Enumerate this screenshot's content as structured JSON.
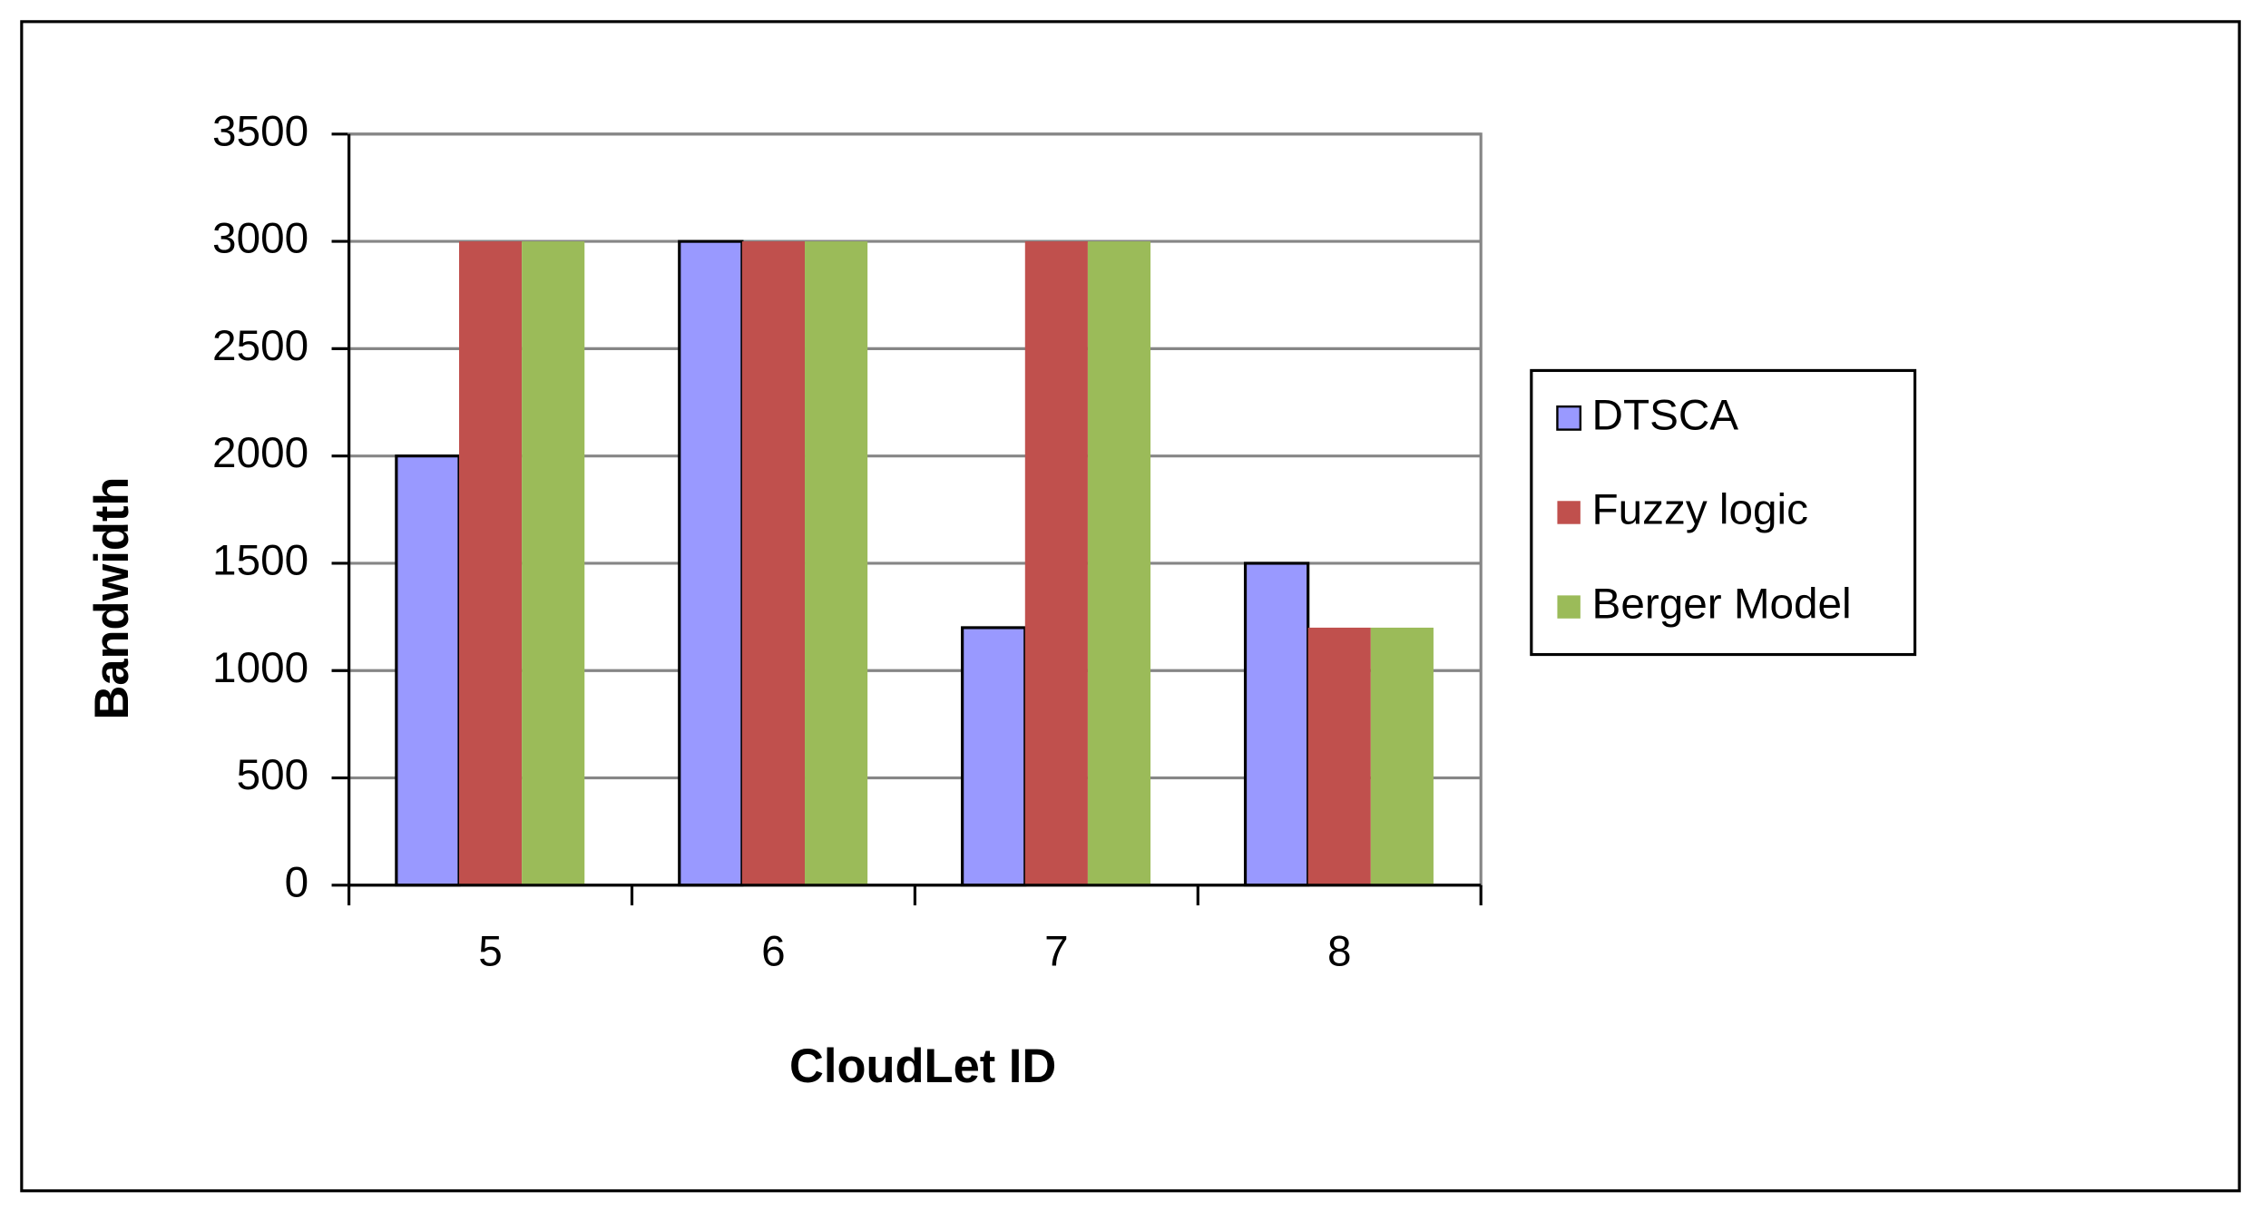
{
  "chart_data": {
    "type": "bar",
    "x_label": "CloudLet ID",
    "y_label": "Bandwidth",
    "categories": [
      "5",
      "6",
      "7",
      "8"
    ],
    "series": [
      {
        "name": "DTSCA",
        "color": "#9999ff",
        "edgecolor": "#000000",
        "values": [
          2000,
          3000,
          1200,
          1500
        ]
      },
      {
        "name": "Fuzzy logic",
        "color": "#c0504d",
        "values": [
          3000,
          3000,
          3000,
          1200
        ]
      },
      {
        "name": "Berger Model",
        "color": "#9bbb59",
        "values": [
          3000,
          3000,
          3000,
          1200
        ]
      }
    ],
    "ylim": [
      0,
      3500
    ],
    "yticks": [
      0,
      500,
      1000,
      1500,
      2000,
      2500,
      3000,
      3500
    ],
    "grid": true,
    "legend": "right"
  }
}
